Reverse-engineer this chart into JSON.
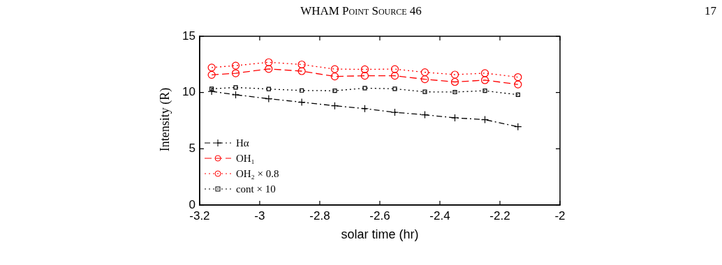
{
  "chart_data": {
    "type": "line",
    "xlabel": "solar time (hr)",
    "ylabel": "Intensity (R)",
    "annotations": [
      "WHAM Point Source 46",
      "17"
    ],
    "xlim": [
      -3.2,
      -2
    ],
    "xticks": [
      -3.2,
      -3,
      -2.8,
      -2.6,
      -2.4,
      -2.2,
      -2
    ],
    "ylim": [
      0,
      15
    ],
    "yticks": [
      0,
      5,
      10,
      15
    ],
    "x": [
      -3.16,
      -3.08,
      -2.97,
      -2.86,
      -2.75,
      -2.65,
      -2.55,
      -2.45,
      -2.35,
      -2.25,
      -2.14
    ],
    "legend": "bottom left",
    "grid": false,
    "series": [
      {
        "name": "Hα",
        "color": "#000000",
        "marker": "cross",
        "line_style": "dashdot",
        "values": [
          10.1,
          9.8,
          9.45,
          9.14,
          8.82,
          8.57,
          8.24,
          8.02,
          7.75,
          7.59,
          6.96
        ]
      },
      {
        "name": "OH₁",
        "color": "#ff0000",
        "marker": "circle",
        "line_style": "dashed",
        "values": [
          11.57,
          11.71,
          12.1,
          11.9,
          11.43,
          11.49,
          11.49,
          11.18,
          10.94,
          11.1,
          10.72
        ]
      },
      {
        "name": "OH₂ × 0.8",
        "color": "#ff0000",
        "marker": "circle",
        "line_style": "dotted",
        "values": [
          12.22,
          12.39,
          12.69,
          12.49,
          12.08,
          12.06,
          12.08,
          11.8,
          11.59,
          11.72,
          11.37
        ]
      },
      {
        "name": "cont × 10",
        "color": "#000000",
        "marker": "square",
        "line_style": "dotted",
        "values": [
          10.33,
          10.45,
          10.31,
          10.18,
          10.16,
          10.39,
          10.33,
          10.06,
          10.04,
          10.16,
          9.8
        ]
      }
    ]
  }
}
